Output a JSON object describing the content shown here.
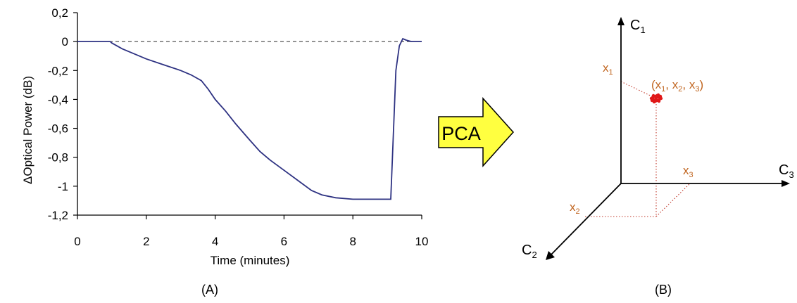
{
  "panel_a": {
    "label": "(A)",
    "chart_data": {
      "type": "line",
      "xlabel": "Time (minutes)",
      "ylabel": "ΔOptical Power (dB)",
      "xlim": [
        0,
        10
      ],
      "ylim": [
        -1.2,
        0.2
      ],
      "x_ticks": [
        "0",
        "2",
        "4",
        "6",
        "8",
        "10"
      ],
      "y_ticks": [
        "0,2",
        "0",
        "-0,2",
        "-0,4",
        "-0,6",
        "-0,8",
        "-1",
        "-1,2"
      ],
      "reference_line": {
        "y": 0,
        "style": "dashed"
      },
      "grid": false,
      "line_color": "#2e3282",
      "series": [
        {
          "x": [
            0,
            0.5,
            0.95,
            1.0,
            1.3,
            1.6,
            2.0,
            2.5,
            3.0,
            3.3,
            3.6,
            3.8,
            4.0,
            4.3,
            4.6,
            5.0,
            5.3,
            5.6,
            6.0,
            6.4,
            6.8,
            7.1,
            7.5,
            8.0,
            8.5,
            9.0,
            9.1,
            9.15,
            9.25,
            9.35,
            9.45,
            9.55,
            9.7,
            10.0
          ],
          "y": [
            0,
            0,
            0,
            -0.01,
            -0.05,
            -0.08,
            -0.12,
            -0.16,
            -0.2,
            -0.23,
            -0.27,
            -0.33,
            -0.4,
            -0.48,
            -0.57,
            -0.68,
            -0.76,
            -0.82,
            -0.89,
            -0.96,
            -1.03,
            -1.06,
            -1.08,
            -1.09,
            -1.09,
            -1.09,
            -1.09,
            -0.8,
            -0.2,
            -0.03,
            0.02,
            0.01,
            0,
            0
          ]
        }
      ]
    }
  },
  "arrow": {
    "label": "PCA",
    "fill": "#ffff40"
  },
  "panel_b": {
    "label": "(B)",
    "axes": [
      {
        "base": "C",
        "sub": "1"
      },
      {
        "base": "C",
        "sub": "2"
      },
      {
        "base": "C",
        "sub": "3"
      }
    ],
    "projections": [
      {
        "base": "x",
        "sub": "1"
      },
      {
        "base": "x",
        "sub": "2"
      },
      {
        "base": "x",
        "sub": "3"
      }
    ],
    "point_label": {
      "parts": [
        "(x",
        "1",
        ", x",
        "2",
        ", x",
        "3",
        ")"
      ]
    },
    "label_color": "#c0641e",
    "point_color": "#e01818",
    "guide_color": "#c0392b"
  }
}
